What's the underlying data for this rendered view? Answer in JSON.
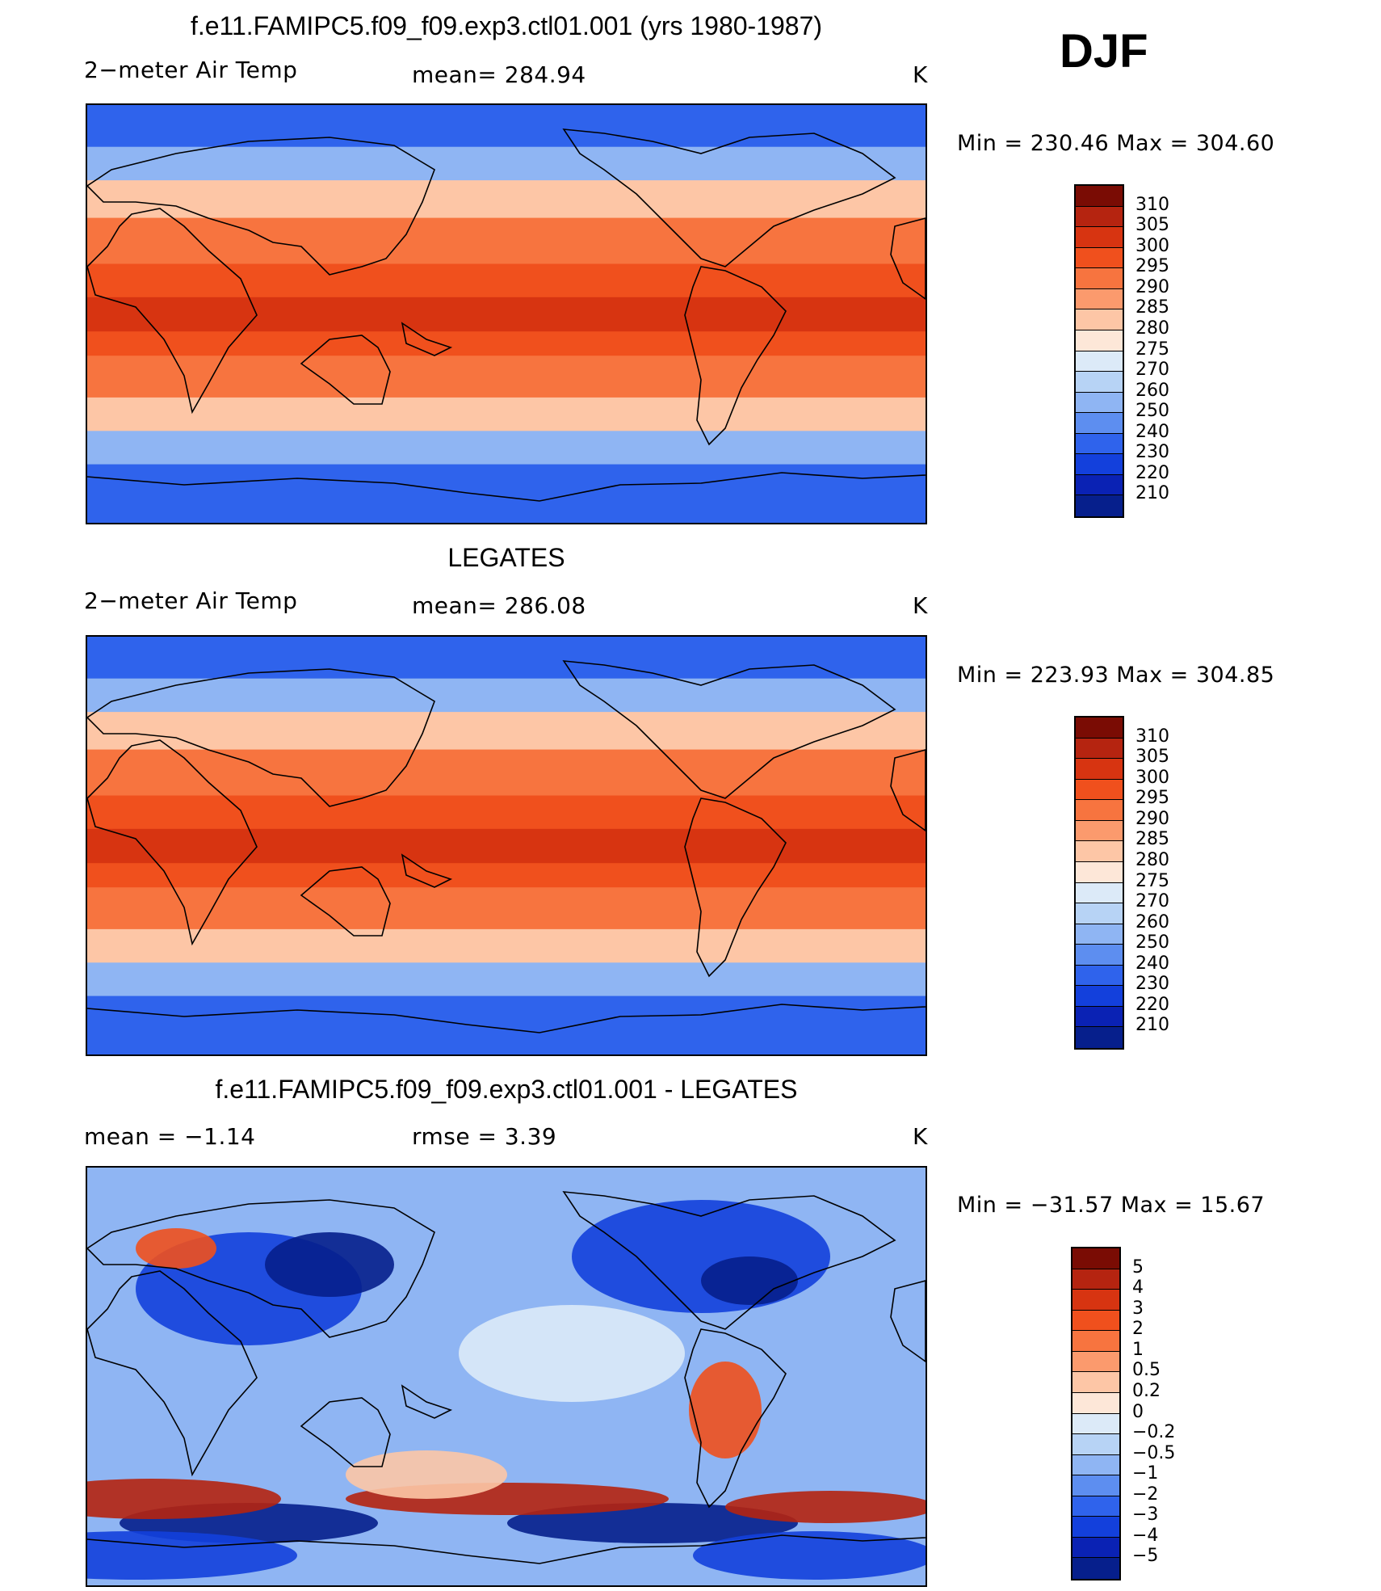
{
  "season": "DJF",
  "panels": [
    {
      "id": "model",
      "title": "f.e11.FAMIPC5.f09_f09.exp3.ctl01.001 (yrs 1980-1987)",
      "left_label": "2−meter Air Temp",
      "center_label": "mean=  284.94",
      "units": "K",
      "minmax": "Min  =  230.46  Max  =  304.60",
      "colorbar": {
        "labels": [
          "310",
          "305",
          "300",
          "295",
          "290",
          "285",
          "280",
          "275",
          "270",
          "260",
          "250",
          "240",
          "230",
          "220",
          "210"
        ],
        "colors": [
          "#7a0c04",
          "#b52410",
          "#d73411",
          "#f0501d",
          "#f7743f",
          "#fb9a6d",
          "#fdc6a6",
          "#fde7d8",
          "#dceaf8",
          "#b7d3f5",
          "#8fb5f3",
          "#5d8ef0",
          "#2f63ec",
          "#1340dc",
          "#0a22b4",
          "#061f8c"
        ]
      },
      "map_colors": {
        "cold": "#2f63ec",
        "cool": "#8fb5f3",
        "mild": "#fdc6a6",
        "warm": "#f7743f",
        "hot": "#f0501d",
        "hottest": "#d73411"
      }
    },
    {
      "id": "obs",
      "title": "LEGATES",
      "left_label": "2−meter Air Temp",
      "center_label": "mean=  286.08",
      "units": "K",
      "minmax": "Min  =  223.93  Max  =  304.85",
      "colorbar": {
        "labels": [
          "310",
          "305",
          "300",
          "295",
          "290",
          "285",
          "280",
          "275",
          "270",
          "260",
          "250",
          "240",
          "230",
          "220",
          "210"
        ],
        "colors": [
          "#7a0c04",
          "#b52410",
          "#d73411",
          "#f0501d",
          "#f7743f",
          "#fb9a6d",
          "#fdc6a6",
          "#fde7d8",
          "#dceaf8",
          "#b7d3f5",
          "#8fb5f3",
          "#5d8ef0",
          "#2f63ec",
          "#1340dc",
          "#0a22b4",
          "#061f8c"
        ]
      },
      "map_colors": {
        "cold": "#2f63ec",
        "cool": "#8fb5f3",
        "mild": "#fdc6a6",
        "warm": "#f7743f",
        "hot": "#f0501d",
        "hottest": "#d73411"
      }
    },
    {
      "id": "diff",
      "title": "f.e11.FAMIPC5.f09_f09.exp3.ctl01.001 - LEGATES",
      "left_label": "mean  =    −1.14",
      "center_label": "rmse  =     3.39",
      "units": "K",
      "minmax": "Min  =  −31.57  Max  =    15.67",
      "colorbar": {
        "labels": [
          "5",
          "4",
          "3",
          "2",
          "1",
          "0.5",
          "0.2",
          "0",
          "−0.2",
          "−0.5",
          "−1",
          "−2",
          "−3",
          "−4",
          "−5"
        ],
        "colors": [
          "#7a0c04",
          "#b52410",
          "#d73411",
          "#f0501d",
          "#f7743f",
          "#fb9a6d",
          "#fdc6a6",
          "#fde7d8",
          "#dceaf8",
          "#b7d3f5",
          "#8fb5f3",
          "#5d8ef0",
          "#2f63ec",
          "#1340dc",
          "#0a22b4",
          "#061f8c"
        ]
      },
      "map_colors": {
        "base": "#8fb5f3",
        "neg": "#1340dc",
        "pos": "#f0501d",
        "strongneg": "#061f8c",
        "strongpos": "#b52410"
      }
    }
  ]
}
